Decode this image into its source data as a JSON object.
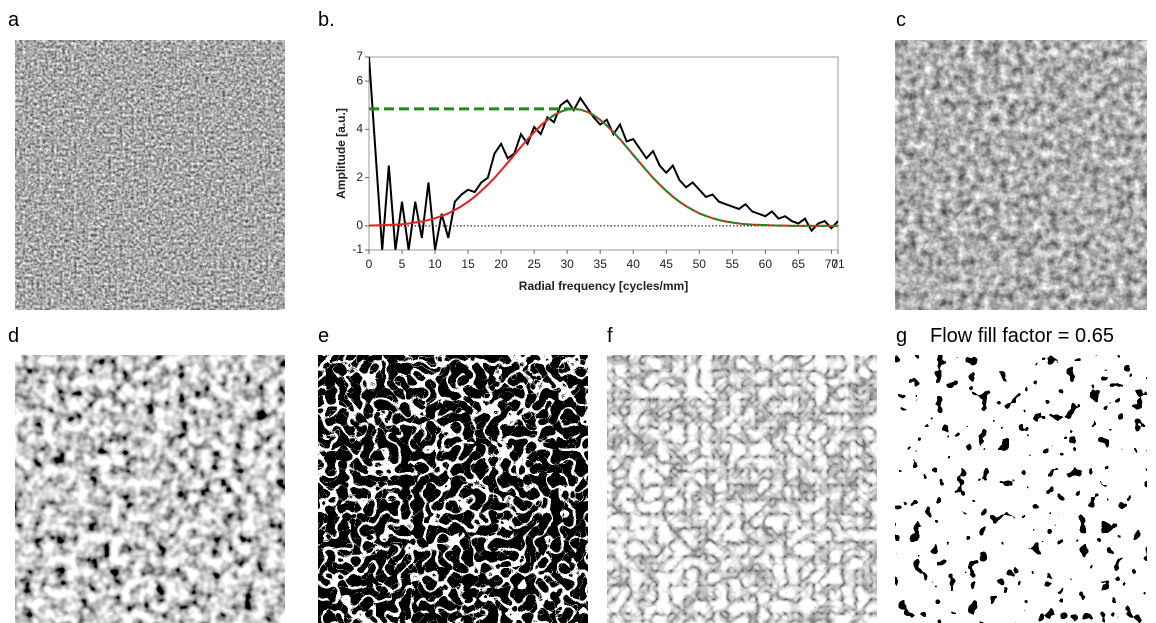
{
  "panels": {
    "a": "a",
    "b": "b.",
    "c": "c",
    "d": "d",
    "e": "e",
    "f": "f",
    "g": "g",
    "g_caption": "Flow fill factor = 0.65"
  },
  "chart_data": {
    "type": "line",
    "xlabel": "Radial frequency [cycles/mm]",
    "ylabel": "Amplitude [a.u.]",
    "x": [
      0,
      1,
      2,
      3,
      4,
      5,
      6,
      7,
      8,
      9,
      10,
      11,
      12,
      13,
      14,
      15,
      16,
      17,
      18,
      19,
      20,
      21,
      22,
      23,
      24,
      25,
      26,
      27,
      28,
      29,
      30,
      31,
      32,
      33,
      34,
      35,
      36,
      37,
      38,
      39,
      40,
      41,
      42,
      43,
      44,
      45,
      46,
      47,
      48,
      49,
      50,
      51,
      52,
      53,
      54,
      55,
      56,
      57,
      58,
      59,
      60,
      61,
      62,
      63,
      64,
      65,
      66,
      67,
      68,
      69,
      70,
      71
    ],
    "series": [
      {
        "color": "#000000",
        "dash": false,
        "values": [
          7,
          3,
          -1,
          2.5,
          -1,
          1,
          -1,
          1,
          -0.5,
          1.8,
          -1,
          0.5,
          -0.5,
          1,
          1.3,
          1.5,
          1.4,
          1.8,
          2,
          3,
          3.4,
          2.8,
          3,
          3.8,
          3.4,
          4.1,
          3.8,
          4.5,
          4.3,
          5,
          5.2,
          4.8,
          5.3,
          4.9,
          4.5,
          4.2,
          4.4,
          3.8,
          4.2,
          3.5,
          3.6,
          3.2,
          2.8,
          3.1,
          2.5,
          2.2,
          2.5,
          1.9,
          1.6,
          1.8,
          1.5,
          1.2,
          1.3,
          1,
          0.9,
          0.8,
          0.7,
          0.9,
          0.6,
          0.5,
          0.4,
          0.6,
          0.3,
          0.4,
          0.2,
          0.1,
          0.3,
          -0.2,
          0.1,
          0.2,
          -0.1,
          0.2
        ]
      },
      {
        "color": "#e8211f",
        "dash": false,
        "values": [
          0.01,
          0.02,
          0.03,
          0.04,
          0.05,
          0.07,
          0.1,
          0.14,
          0.18,
          0.24,
          0.32,
          0.41,
          0.52,
          0.66,
          0.82,
          1,
          1.21,
          1.45,
          1.71,
          1.99,
          2.3,
          2.62,
          2.94,
          3.27,
          3.59,
          3.88,
          4.16,
          4.39,
          4.59,
          4.73,
          4.82,
          4.85,
          4.82,
          4.73,
          4.59,
          4.39,
          4.16,
          3.88,
          3.59,
          3.27,
          2.94,
          2.62,
          2.3,
          1.99,
          1.71,
          1.45,
          1.21,
          1,
          0.82,
          0.66,
          0.52,
          0.41,
          0.32,
          0.24,
          0.18,
          0.14,
          0.1,
          0.07,
          0.05,
          0.04,
          0.03,
          0.02,
          0.01,
          0.01,
          0,
          0,
          0,
          0,
          0,
          0,
          0,
          0
        ]
      },
      {
        "color": "#1f8a1f",
        "dash": true,
        "values": [
          null,
          null,
          null,
          null,
          null,
          null,
          null,
          null,
          null,
          null,
          null,
          null,
          null,
          null,
          null,
          null,
          null,
          null,
          null,
          null,
          null,
          null,
          null,
          null,
          null,
          null,
          null,
          4.39,
          4.59,
          4.73,
          4.82,
          4.85,
          4.82,
          4.73,
          4.59,
          4.39,
          4.16,
          3.88,
          3.59,
          3.27,
          2.94,
          2.62,
          2.3,
          1.99,
          1.71,
          1.45,
          1.21,
          1,
          0.82,
          0.66,
          0.52,
          0.41,
          0.32,
          0.24,
          0.18,
          0.14,
          0.1,
          0.07,
          0.05,
          0.04,
          0.03,
          0.02,
          0.01,
          0.01,
          0,
          0,
          0,
          0,
          0,
          0,
          0,
          0
        ]
      },
      {
        "color": "#1f8a1f",
        "dash": true,
        "width": 3,
        "values": [
          4.85,
          4.85,
          4.85,
          4.85,
          4.85,
          4.85,
          4.85,
          4.85,
          4.85,
          4.85,
          4.85,
          4.85,
          4.85,
          4.85,
          4.85,
          4.85,
          4.85,
          4.85,
          4.85,
          4.85,
          4.85,
          4.85,
          4.85,
          4.85,
          4.85,
          4.85,
          4.85,
          4.85,
          4.85,
          4.85,
          4.85,
          4.85,
          null,
          null,
          null,
          null,
          null,
          null,
          null,
          null,
          null,
          null,
          null,
          null,
          null,
          null,
          null,
          null,
          null,
          null,
          null,
          null,
          null,
          null,
          null,
          null,
          null,
          null,
          null,
          null,
          null,
          null,
          null,
          null,
          null,
          null,
          null,
          null,
          null,
          null,
          null,
          null
        ]
      }
    ],
    "xlim": [
      0,
      71
    ],
    "xticks": [
      0,
      5,
      10,
      15,
      20,
      25,
      30,
      35,
      40,
      45,
      50,
      55,
      60,
      65,
      70,
      71
    ],
    "ylim": [
      -1,
      7
    ],
    "yticks": [
      -1,
      0,
      2,
      4,
      6,
      7
    ],
    "zero_line": true
  }
}
